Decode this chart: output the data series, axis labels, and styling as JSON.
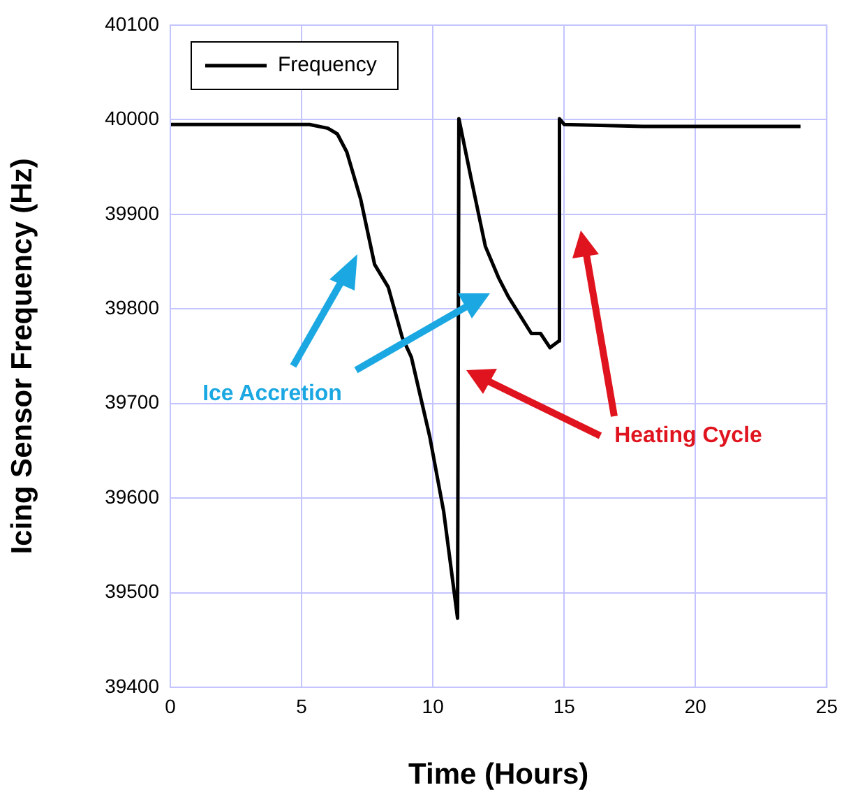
{
  "chart_data": {
    "type": "line",
    "xlabel": "Time (Hours)",
    "ylabel": "Icing Sensor Frequency (Hz)",
    "xlim": [
      0,
      25
    ],
    "xticks": [
      0,
      5,
      10,
      15,
      20,
      25
    ],
    "ylim": [
      39400,
      40100
    ],
    "yticks": [
      39400,
      39500,
      39600,
      39700,
      39800,
      39900,
      40000,
      40100
    ],
    "grid": true,
    "legend": "top left",
    "marker": "none",
    "line_style": "solid",
    "annotations": [
      "Ice Accretion",
      "Heating Cycle"
    ],
    "series": [
      {
        "name": "Frequency",
        "color": "#000000",
        "x": [
          0,
          2,
          4,
          5.3,
          6.0,
          6.36,
          6.72,
          7.25,
          7.78,
          8.3,
          8.83,
          9.18,
          9.88,
          10.41,
          10.94,
          10.99,
          11.47,
          12.0,
          12.5,
          12.87,
          13.75,
          14.1,
          14.46,
          14.8,
          14.82,
          15.0,
          18,
          21,
          24.0
        ],
        "values": [
          39995,
          39995,
          39995,
          39995,
          39991,
          39985,
          39966,
          39916,
          39847,
          39823,
          39770,
          39749,
          39665,
          39586,
          39473,
          40001,
          39936,
          39866,
          39833,
          39813,
          39774,
          39774,
          39759,
          39766,
          40001,
          39995,
          39993,
          39993,
          39993
        ]
      }
    ]
  }
}
